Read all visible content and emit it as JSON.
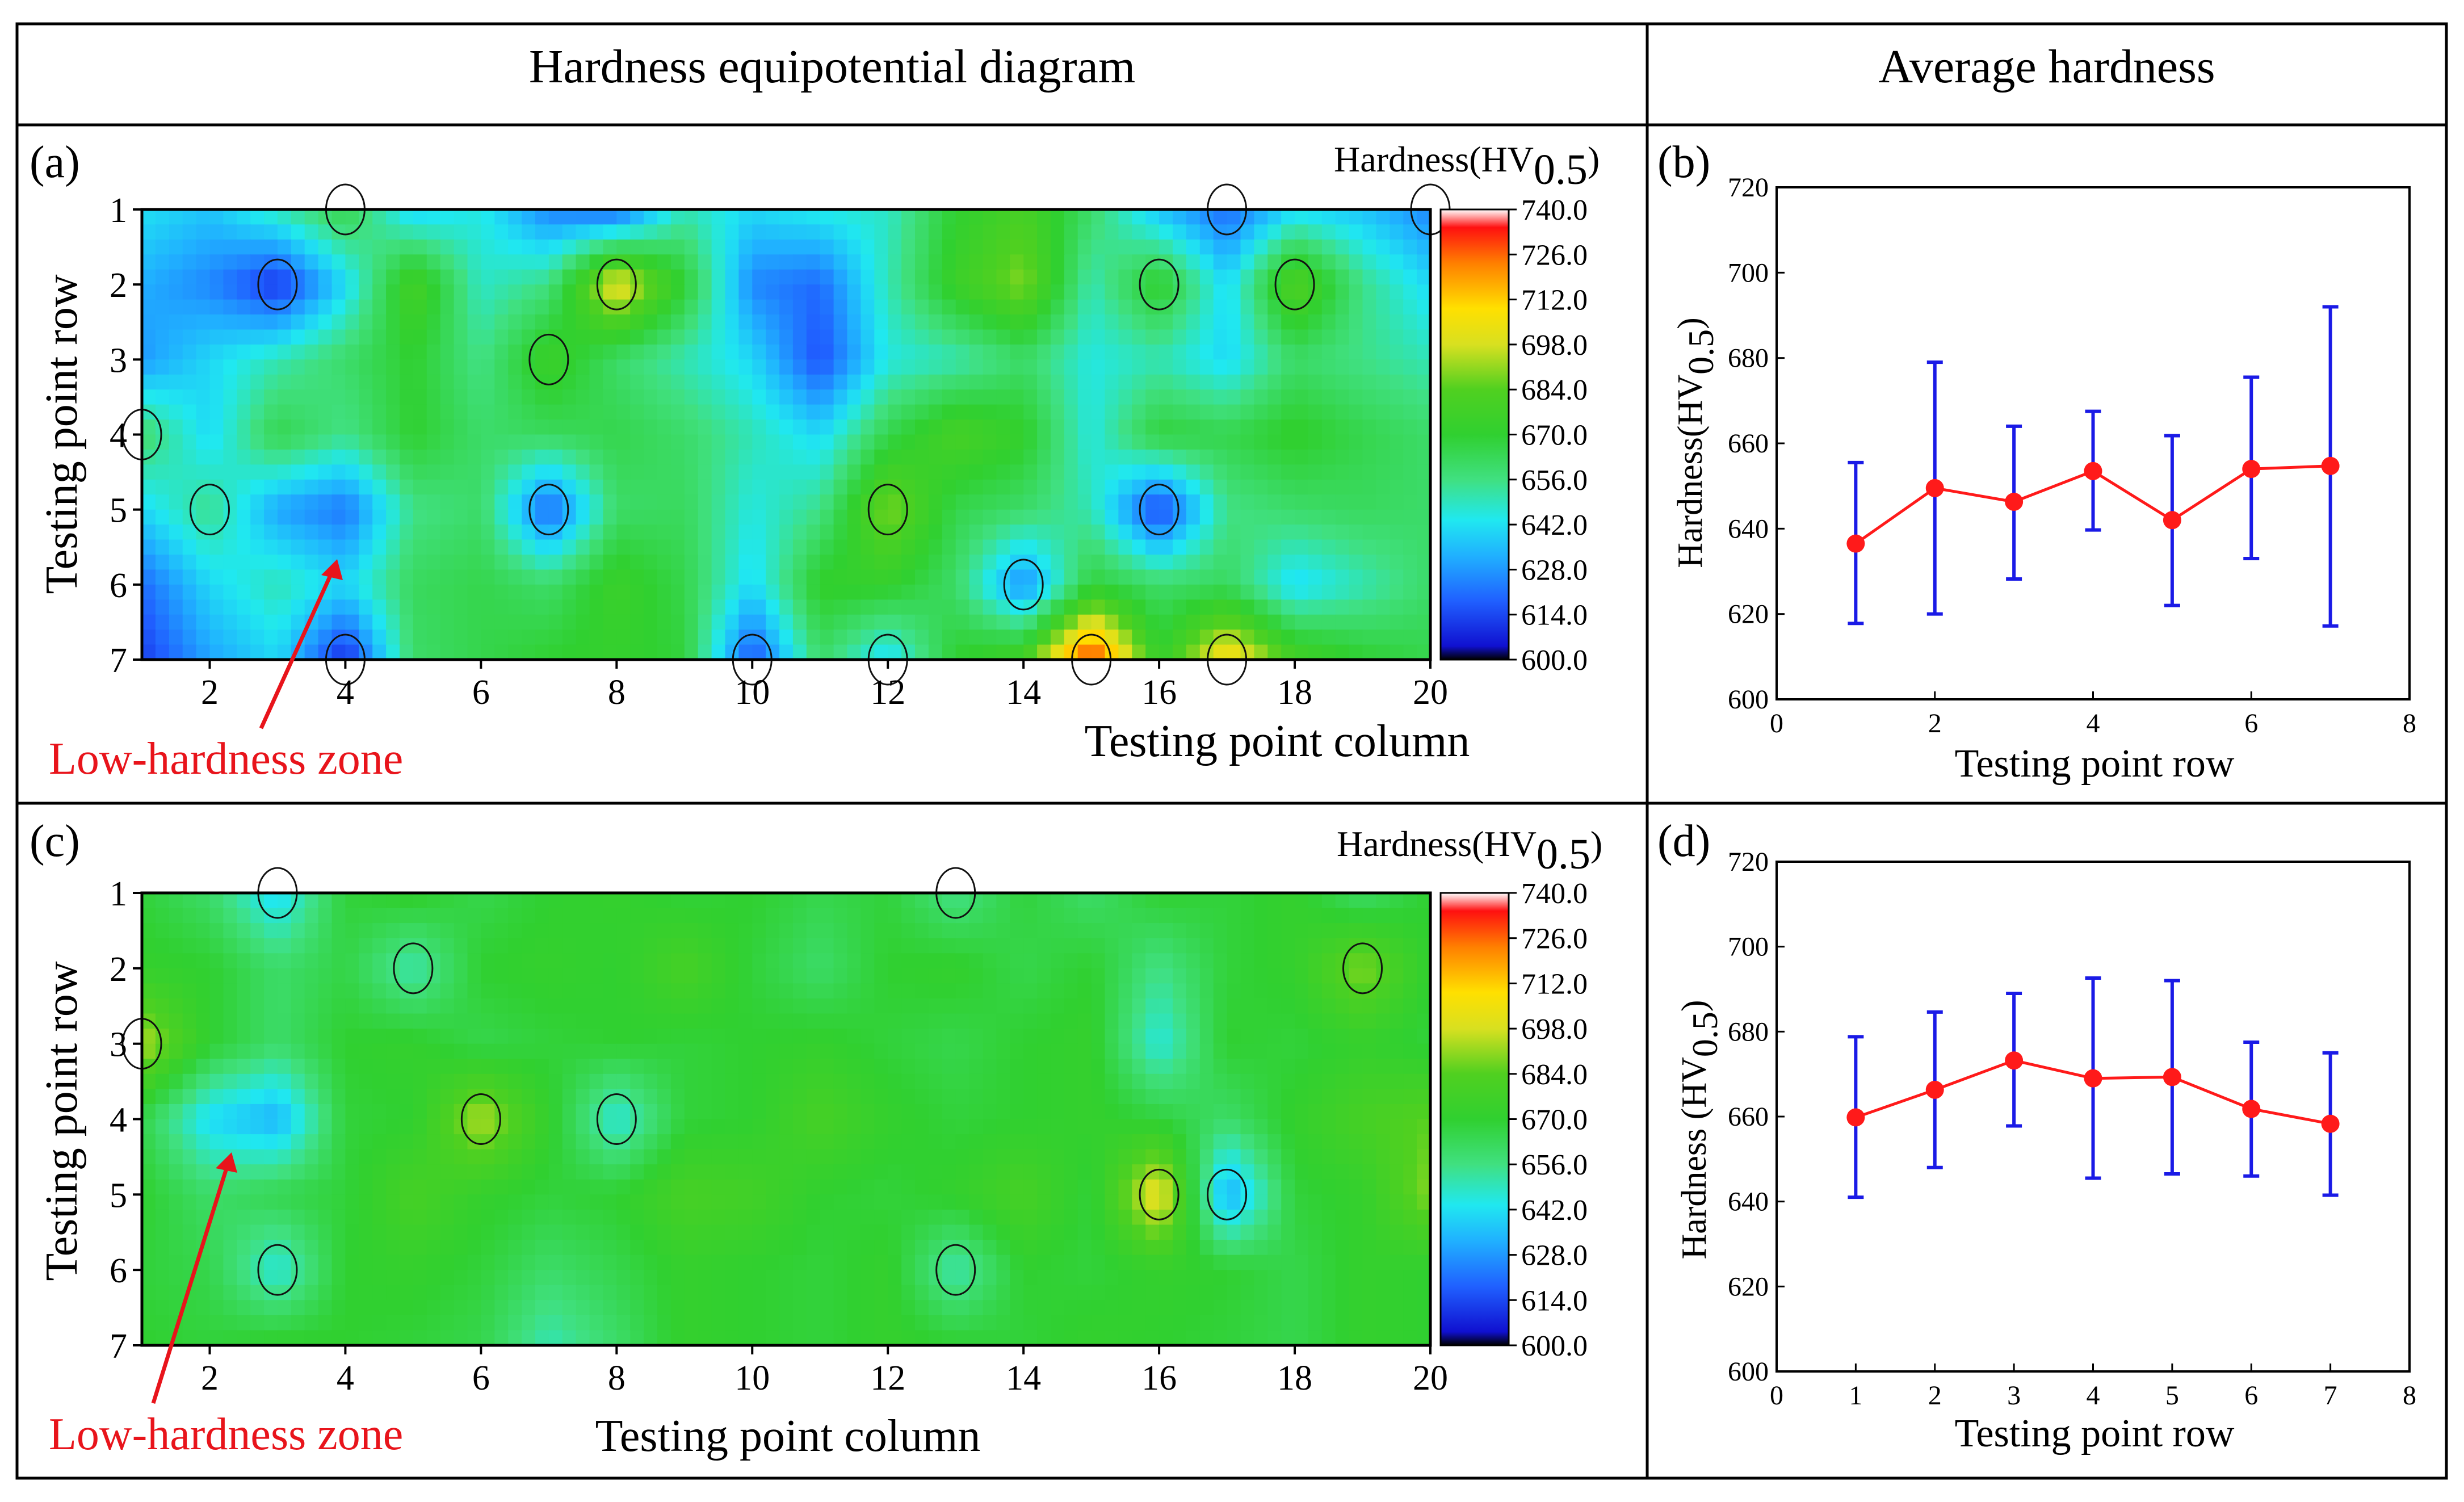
{
  "headers": {
    "left": "Hardness equipotential diagram",
    "right": "Average hardness"
  },
  "panels": {
    "a": {
      "label": "(a)",
      "colorbar_title": "Hardness(HV",
      "colorbar_sub": "0.5",
      "colorbar_close": ")",
      "annotation": "Low-hardness zone"
    },
    "b": {
      "label": "(b)"
    },
    "c": {
      "label": "(c)",
      "colorbar_title": "Hardness(HV",
      "colorbar_sub": "0.5",
      "colorbar_close": ")",
      "annotation": "Low-hardness zone"
    },
    "d": {
      "label": "(d)"
    }
  },
  "colors": {
    "frame": "#000000",
    "annotation": "#e8141b",
    "marker": "#ff1a1a",
    "errorbar": "#1a1ae6",
    "line": "#ff1a1a"
  },
  "chart_data": [
    {
      "id": "a",
      "type": "heatmap",
      "title": "",
      "xlabel": "Testing point column",
      "ylabel": "Testing point row",
      "x_ticks": [
        "2",
        "4",
        "6",
        "8",
        "10",
        "12",
        "14",
        "16",
        "18",
        "20"
      ],
      "y_ticks": [
        "1",
        "2",
        "3",
        "4",
        "5",
        "6",
        "7"
      ],
      "xlim": [
        1,
        20
      ],
      "ylim": [
        1,
        7
      ],
      "colorbar_ticks": [
        "740.0",
        "726.0",
        "712.0",
        "698.0",
        "684.0",
        "670.0",
        "656.0",
        "642.0",
        "628.0",
        "614.0",
        "600.0"
      ],
      "colorbar_range": [
        600,
        740
      ],
      "z": [
        [
          642,
          636,
          650,
          665,
          638,
          645,
          624,
          618,
          650,
          640,
          645,
          648,
          670,
          680,
          660,
          635,
          620,
          640,
          636,
          625
        ],
        [
          632,
          625,
          610,
          640,
          680,
          648,
          656,
          705,
          670,
          625,
          620,
          650,
          675,
          690,
          650,
          672,
          640,
          685,
          655,
          640
        ],
        [
          628,
          640,
          650,
          660,
          670,
          655,
          676,
          660,
          650,
          640,
          615,
          645,
          650,
          660,
          645,
          650,
          640,
          660,
          655,
          650
        ],
        [
          660,
          640,
          665,
          655,
          670,
          660,
          662,
          665,
          660,
          650,
          640,
          665,
          680,
          672,
          645,
          668,
          665,
          672,
          665,
          660
        ],
        [
          640,
          655,
          630,
          622,
          655,
          660,
          618,
          660,
          662,
          645,
          655,
          690,
          665,
          660,
          650,
          612,
          655,
          660,
          662,
          660
        ],
        [
          620,
          640,
          650,
          640,
          662,
          665,
          660,
          675,
          665,
          640,
          672,
          672,
          660,
          625,
          668,
          660,
          662,
          640,
          650,
          660
        ],
        [
          612,
          630,
          640,
          608,
          660,
          665,
          670,
          672,
          668,
          615,
          660,
          640,
          670,
          680,
          735,
          672,
          710,
          680,
          670,
          665
        ]
      ]
    },
    {
      "id": "b",
      "type": "scatter",
      "title": "",
      "xlabel": "Testing point row",
      "ylabel": "Hardness(HV",
      "ylabel_sub": "0.5",
      "ylabel_close": ")",
      "xlim": [
        0,
        8
      ],
      "ylim": [
        600,
        720
      ],
      "x_ticks": [
        "0",
        "2",
        "4",
        "6",
        "8"
      ],
      "y_ticks": [
        "600",
        "620",
        "640",
        "660",
        "680",
        "700",
        "720"
      ],
      "x": [
        1,
        2,
        3,
        4,
        5,
        6,
        7
      ],
      "y": [
        636.5,
        649.5,
        646.3,
        653.5,
        642.0,
        654.0,
        654.7
      ],
      "err_low": [
        617.8,
        620.0,
        628.2,
        639.7,
        622.0,
        633.0,
        617.2
      ],
      "err_high": [
        655.5,
        679.0,
        664.0,
        667.5,
        661.8,
        675.5,
        692.0
      ]
    },
    {
      "id": "c",
      "type": "heatmap",
      "title": "",
      "xlabel": "Testing point column",
      "ylabel": "Testing point row",
      "x_ticks": [
        "2",
        "4",
        "6",
        "8",
        "10",
        "12",
        "14",
        "16",
        "18",
        "20"
      ],
      "y_ticks": [
        "1",
        "2",
        "3",
        "4",
        "5",
        "6",
        "7"
      ],
      "xlim": [
        1,
        20
      ],
      "ylim": [
        1,
        7
      ],
      "colorbar_ticks": [
        "740.0",
        "726.0",
        "712.0",
        "698.0",
        "684.0",
        "670.0",
        "656.0",
        "642.0",
        "628.0",
        "614.0",
        "600.0"
      ],
      "colorbar_range": [
        600,
        740
      ],
      "z": [
        [
          668,
          660,
          640,
          668,
          672,
          665,
          670,
          672,
          668,
          670,
          665,
          668,
          655,
          668,
          660,
          670,
          668,
          672,
          660,
          670
        ],
        [
          672,
          670,
          660,
          666,
          650,
          670,
          672,
          670,
          680,
          668,
          660,
          670,
          672,
          665,
          670,
          655,
          668,
          672,
          690,
          670
        ],
        [
          695,
          670,
          660,
          670,
          672,
          665,
          668,
          670,
          668,
          670,
          672,
          668,
          665,
          670,
          672,
          645,
          670,
          668,
          672,
          668
        ],
        [
          665,
          640,
          632,
          668,
          670,
          695,
          672,
          645,
          668,
          670,
          680,
          672,
          668,
          670,
          672,
          668,
          660,
          672,
          680,
          685
        ],
        [
          670,
          660,
          665,
          668,
          680,
          672,
          668,
          670,
          680,
          678,
          670,
          668,
          672,
          680,
          668,
          705,
          630,
          668,
          672,
          690
        ],
        [
          668,
          665,
          645,
          670,
          672,
          668,
          660,
          665,
          672,
          670,
          668,
          672,
          650,
          670,
          668,
          672,
          670,
          665,
          672,
          670
        ],
        [
          670,
          668,
          672,
          670,
          668,
          665,
          650,
          660,
          672,
          670,
          668,
          672,
          670,
          668,
          672,
          670,
          668,
          665,
          672,
          670
        ]
      ]
    },
    {
      "id": "d",
      "type": "scatter",
      "title": "",
      "xlabel": "Testing point row",
      "ylabel": "Hardness (HV",
      "ylabel_sub": "0.5",
      "ylabel_close": ")",
      "xlim": [
        0,
        8
      ],
      "ylim": [
        600,
        720
      ],
      "x_ticks": [
        "0",
        "1",
        "2",
        "3",
        "4",
        "5",
        "6",
        "7",
        "8"
      ],
      "y_ticks": [
        "600",
        "620",
        "640",
        "660",
        "680",
        "700",
        "720"
      ],
      "x": [
        1,
        2,
        3,
        4,
        5,
        6,
        7
      ],
      "y": [
        659.8,
        666.3,
        673.2,
        669.0,
        669.3,
        661.8,
        658.3
      ],
      "err_low": [
        641.0,
        648.0,
        657.8,
        645.5,
        646.5,
        646.0,
        641.5
      ],
      "err_high": [
        678.8,
        684.6,
        689.0,
        692.6,
        692.0,
        677.5,
        675.0
      ]
    }
  ]
}
